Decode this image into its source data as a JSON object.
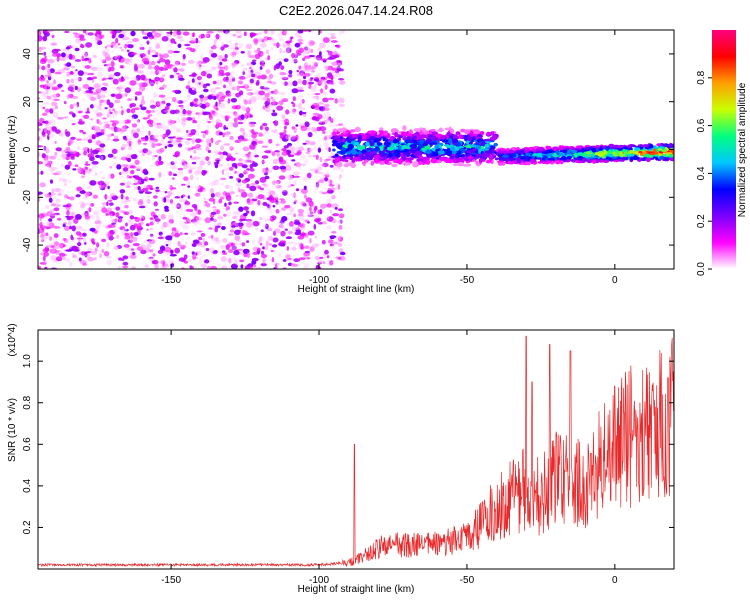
{
  "figure_title": "C2E2.2026.047.14.24.R08",
  "chart_data": [
    {
      "type": "heatmap",
      "title": "",
      "xlabel": "Height of straight line (km)",
      "ylabel": "Frequency (Hz)",
      "xlim": [
        -195,
        20
      ],
      "ylim": [
        -50,
        50
      ],
      "xticks": [
        -150,
        -100,
        -50,
        0
      ],
      "yticks": [
        -40,
        -20,
        0,
        20,
        40
      ],
      "colorbar": {
        "label": "Normalized spectral amplitude",
        "range": [
          0,
          1
        ],
        "ticks": [
          0.0,
          0.2,
          0.4,
          0.6,
          0.8
        ],
        "colors": [
          "#ffffff",
          "#ff00ff",
          "#7a00ff",
          "#0000ff",
          "#00c8ff",
          "#00ff80",
          "#c8ff00",
          "#ffa000",
          "#ff0000",
          "#ff0080"
        ]
      },
      "regions": [
        {
          "x_range": [
            -195,
            -95
          ],
          "freq_range": [
            -50,
            50
          ],
          "amplitude_range": [
            0.02,
            0.22
          ],
          "description_values": "broadband noise"
        },
        {
          "x_range": [
            -95,
            -40
          ],
          "center_freq": 1,
          "band_width": 8,
          "peak_amplitude": 0.55
        },
        {
          "x_range": [
            -40,
            20
          ],
          "center_freq_start": -3,
          "center_freq_end": -1,
          "band_width": 4,
          "peak_amplitude": 1.0
        }
      ]
    },
    {
      "type": "line",
      "title": "",
      "xlabel": "Height of straight line (km)",
      "ylabel": "SNR (10 * v/v)",
      "y_multiplier": "(x10^4)",
      "xlim": [
        -195,
        20
      ],
      "ylim": [
        0,
        1.15
      ],
      "xticks": [
        -150,
        -100,
        -50,
        0
      ],
      "yticks": [
        0.2,
        0.4,
        0.6,
        0.8,
        1.0
      ],
      "color": "#e8282a",
      "x": [
        -195,
        -180,
        -160,
        -140,
        -120,
        -100,
        -90,
        -85,
        -80,
        -75,
        -70,
        -65,
        -60,
        -55,
        -50,
        -45,
        -40,
        -35,
        -30,
        -25,
        -20,
        -15,
        -10,
        -5,
        0,
        5,
        10,
        15,
        20
      ],
      "y": [
        0.02,
        0.02,
        0.02,
        0.02,
        0.02,
        0.02,
        0.03,
        0.06,
        0.1,
        0.12,
        0.11,
        0.12,
        0.12,
        0.13,
        0.15,
        0.22,
        0.3,
        0.35,
        0.38,
        0.34,
        0.45,
        0.42,
        0.4,
        0.5,
        0.6,
        0.63,
        0.66,
        0.7,
        0.78
      ],
      "spikes": [
        [
          -88,
          0.6
        ],
        [
          -30,
          1.12
        ],
        [
          -28,
          0.9
        ],
        [
          -22,
          1.08
        ],
        [
          -15,
          1.05
        ],
        [
          0,
          0.88
        ],
        [
          5,
          0.65
        ],
        [
          18,
          0.92
        ]
      ]
    }
  ]
}
